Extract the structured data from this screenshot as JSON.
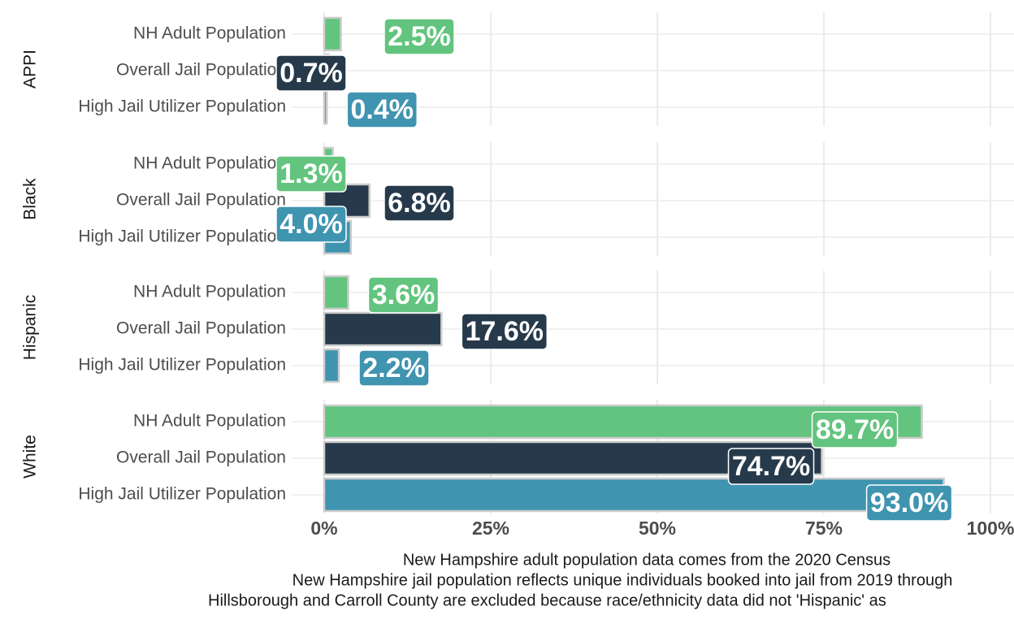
{
  "chart_data": {
    "type": "bar",
    "orientation": "horizontal",
    "categories": [
      "NH Adult Population",
      "Overall Jail Population",
      "High Jail Utilizer Population"
    ],
    "colors": [
      "#62c47e",
      "#263a4b",
      "#3f94b0"
    ],
    "panels": [
      {
        "name": "APPI",
        "values": [
          2.5,
          0.7,
          0.4
        ],
        "value_labels": [
          "2.5%",
          "0.7%",
          "0.4%"
        ]
      },
      {
        "name": "Black",
        "values": [
          1.3,
          6.8,
          4.0
        ],
        "value_labels": [
          "1.3%",
          "6.8%",
          "4.0%"
        ]
      },
      {
        "name": "Hispanic",
        "values": [
          3.6,
          17.6,
          2.2
        ],
        "value_labels": [
          "3.6%",
          "17.6%",
          "2.2%"
        ]
      },
      {
        "name": "White",
        "values": [
          89.7,
          74.7,
          93.0
        ],
        "value_labels": [
          "89.7%",
          "74.7%",
          "93.0%"
        ]
      }
    ],
    "xlim": [
      0,
      100
    ],
    "xticks": [
      {
        "value": 0,
        "label": "0%"
      },
      {
        "value": 25,
        "label": "25%"
      },
      {
        "value": 50,
        "label": "50%"
      },
      {
        "value": 75,
        "label": "75%"
      },
      {
        "value": 100,
        "label": "100%"
      }
    ],
    "grid": true,
    "caption": [
      "New Hampshire adult population data comes from the 2020 Census",
      "New Hampshire jail population reflects unique individuals booked into jail from 2019 through",
      "Hillsborough and Carroll County are excluded because race/ethnicity data did not 'Hispanic' as"
    ]
  }
}
